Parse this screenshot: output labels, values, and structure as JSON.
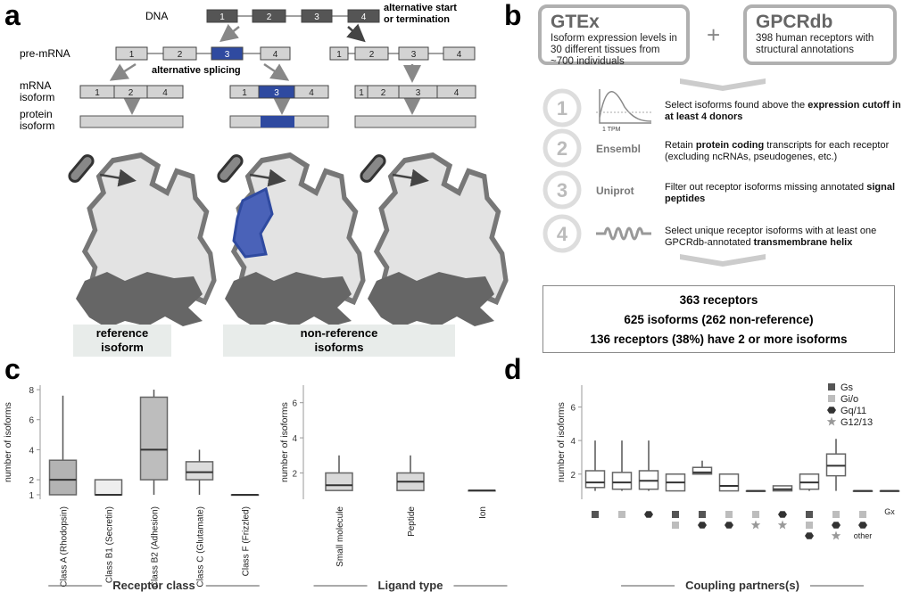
{
  "panel_labels": [
    "a",
    "b",
    "c",
    "d"
  ],
  "panel_a": {
    "dna": "DNA",
    "pre_mrna": "pre-mRNA",
    "mrna": [
      "mRNA",
      "isoform"
    ],
    "protein": [
      "protein",
      "isoform"
    ],
    "exons": [
      "1",
      "2",
      "3",
      "4"
    ],
    "alt_splicing": "alternative splicing",
    "alt_start": [
      "alternative start",
      "or termination"
    ],
    "reference": [
      "reference",
      "isoform"
    ],
    "non_reference": [
      "non-reference",
      "isoforms"
    ]
  },
  "panel_b": {
    "gtex": {
      "title": "GTEx",
      "text": "Isoform expression levels in 30 different tissues from ~700 individuals"
    },
    "plus": "+",
    "gpcrdb": {
      "title": "GPCRdb",
      "text": "398 human receptors with structural annotations"
    },
    "steps": [
      {
        "number": "1",
        "icon_label": "1 TPM",
        "parts": [
          "Select isoforms found above the ",
          "expression cutoff in at least 4 donors"
        ]
      },
      {
        "number": "2",
        "source": "Ensembl",
        "parts": [
          "Retain ",
          "protein coding",
          " transcripts for each receptor (excluding ncRNAs, pseudogenes, etc.)"
        ]
      },
      {
        "number": "3",
        "source": "Uniprot",
        "parts": [
          "Filter out receptor isoforms missing annotated ",
          "signal peptides"
        ]
      },
      {
        "number": "4",
        "parts": [
          "Select unique receptor isoforms with at least one GPCRdb-annotated ",
          "transmembrane helix"
        ]
      }
    ],
    "summary": [
      "363 receptors",
      "625 isoforms (262 non-reference)",
      "136 receptors (38%) have 2 or more isoforms"
    ]
  },
  "chart_data": [
    {
      "type": "box",
      "ylabel": "number of isoforms",
      "xlabel": "Receptor class",
      "categories": [
        "Class A (Rhodopsin)",
        "Class B1 (Secretin)",
        "Class B2 (Adhesion)",
        "Class C (Glutamate)",
        "Class F (Frizzled)"
      ],
      "colors": [
        "#b3b3b3",
        "#eeeeee",
        "#bdbdbd",
        "#dcdcdc",
        "#dcdcdc"
      ],
      "boxes": [
        {
          "min": 1,
          "q1": 1,
          "median": 2,
          "q3": 3.3,
          "max": 7.6
        },
        {
          "min": 1,
          "q1": 1,
          "median": 1,
          "q3": 2,
          "max": 2
        },
        {
          "min": 1,
          "q1": 2,
          "median": 4,
          "q3": 7.5,
          "max": 8
        },
        {
          "min": 1,
          "q1": 2,
          "median": 2.5,
          "q3": 3.2,
          "max": 4
        },
        {
          "min": 1,
          "q1": 1,
          "median": 1,
          "q3": 1,
          "max": 1
        }
      ],
      "ylim": [
        0.7,
        8.3
      ],
      "yticks": [
        1,
        2,
        4,
        6,
        8
      ]
    },
    {
      "type": "box",
      "ylabel": "number of isoforms",
      "xlabel": "Ligand type",
      "categories": [
        "Small molecule",
        "Peptide",
        "Ion"
      ],
      "colors": [
        "#d9d9d9",
        "#d9d9d9",
        "#d9d9d9"
      ],
      "boxes": [
        {
          "min": 1,
          "q1": 1,
          "median": 1.3,
          "q3": 2,
          "max": 3
        },
        {
          "min": 1,
          "q1": 1,
          "median": 1.5,
          "q3": 2,
          "max": 3
        },
        {
          "min": 1,
          "q1": 1,
          "median": 1,
          "q3": 1,
          "max": 1
        }
      ],
      "ylim": [
        0.5,
        7
      ],
      "yticks": [
        2,
        4,
        6
      ]
    },
    {
      "type": "box",
      "ylabel": "number of isoforms",
      "xlabel": "Coupling partners(s)",
      "categories": [
        null,
        null,
        null,
        null,
        null,
        null,
        null,
        null,
        null,
        null,
        "other",
        "Gx"
      ],
      "partners": [
        [
          0
        ],
        [
          1
        ],
        [
          2
        ],
        [
          0,
          1
        ],
        [
          0,
          2
        ],
        [
          1,
          2
        ],
        [
          1,
          3
        ],
        [
          2,
          3
        ],
        [
          0,
          1,
          2
        ],
        [
          1,
          2,
          3
        ],
        [
          1,
          2
        ],
        []
      ],
      "series": [
        {
          "name": "Gs",
          "color": "#555555",
          "shape": "square"
        },
        {
          "name": "Gi/o",
          "color": "#bdbdbd",
          "shape": "square"
        },
        {
          "name": "Gq/11",
          "color": "#333333",
          "shape": "hexagon"
        },
        {
          "name": "G12/13",
          "color": "#999999",
          "shape": "star"
        }
      ],
      "colors": [
        "#ffffff",
        "#ffffff",
        "#ffffff",
        "#ffffff",
        "#ffffff",
        "#ffffff",
        "#ffffff",
        "#ffffff",
        "#ffffff",
        "#ffffff",
        "#ffffff",
        "#ffffff"
      ],
      "boxes": [
        {
          "min": 1,
          "q1": 1.2,
          "median": 1.5,
          "q3": 2.2,
          "max": 4
        },
        {
          "min": 1,
          "q1": 1.1,
          "median": 1.5,
          "q3": 2.1,
          "max": 4
        },
        {
          "min": 1,
          "q1": 1.1,
          "median": 1.6,
          "q3": 2.2,
          "max": 4
        },
        {
          "min": 1,
          "q1": 1,
          "median": 1.5,
          "q3": 2,
          "max": 2
        },
        {
          "min": 2,
          "q1": 2,
          "median": 2.1,
          "q3": 2.4,
          "max": 2.8
        },
        {
          "min": 1,
          "q1": 1,
          "median": 1.3,
          "q3": 2,
          "max": 2
        },
        {
          "min": 1,
          "q1": 1,
          "median": 1,
          "q3": 1,
          "max": 1
        },
        {
          "min": 1,
          "q1": 1,
          "median": 1.1,
          "q3": 1.3,
          "max": 1.3
        },
        {
          "min": 1,
          "q1": 1.1,
          "median": 1.5,
          "q3": 2,
          "max": 2
        },
        {
          "min": 1,
          "q1": 1.9,
          "median": 2.5,
          "q3": 3.2,
          "max": 4.1
        },
        {
          "min": 1,
          "q1": 1,
          "median": 1,
          "q3": 1,
          "max": 1
        },
        {
          "min": 1,
          "q1": 1,
          "median": 1,
          "q3": 1,
          "max": 1
        }
      ],
      "ylim": [
        0.5,
        7.3
      ],
      "yticks": [
        2,
        4,
        6
      ],
      "legend": "top-right"
    }
  ]
}
